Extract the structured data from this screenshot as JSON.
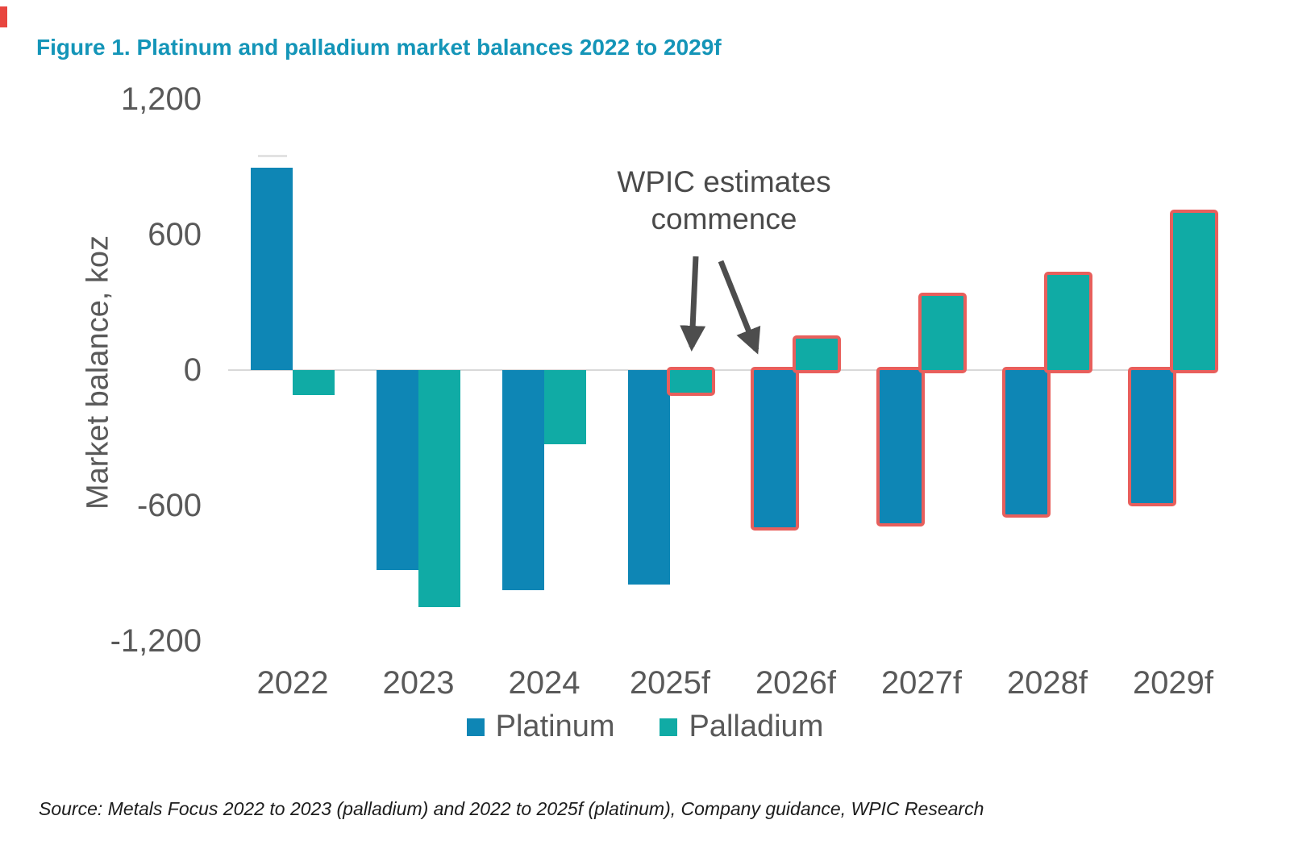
{
  "figure": {
    "title": "Figure 1. Platinum and palladium market balances 2022 to 2029f",
    "source": "Source: Metals Focus 2022 to 2023 (palladium) and 2022 to 2025f (platinum), Company guidance, WPIC Research"
  },
  "annotation": {
    "line1": "WPIC estimates",
    "line2": "commence"
  },
  "colors": {
    "title_accent": "#1495b8",
    "platinum": "#0e86b5",
    "palladium": "#10aba5",
    "wpic_outline": "#e85f5c",
    "axis_text": "#595959",
    "axis_line": "#d8d8d8",
    "annotation_text": "#4a4a4a"
  },
  "chart_data": {
    "type": "bar",
    "title": "Figure 1. Platinum and palladium market balances 2022 to 2029f",
    "xlabel": "",
    "ylabel": "Market balance, koz",
    "units": "koz",
    "categories": [
      "2022",
      "2023",
      "2024",
      "2025f",
      "2026f",
      "2027f",
      "2028f",
      "2029f"
    ],
    "series": [
      {
        "name": "Platinum",
        "color": "#0e86b5",
        "values": [
          895,
          -885,
          -975,
          -950,
          -695,
          -680,
          -640,
          -590
        ],
        "wpic_outlined": [
          false,
          false,
          false,
          false,
          true,
          true,
          true,
          true
        ]
      },
      {
        "name": "Palladium",
        "color": "#10aba5",
        "values": [
          -110,
          -1050,
          -330,
          -100,
          140,
          330,
          420,
          695
        ],
        "wpic_outlined": [
          false,
          false,
          false,
          true,
          true,
          true,
          true,
          true
        ]
      }
    ],
    "ylim": [
      -1200,
      1200
    ],
    "y_ticks": [
      {
        "value": 1200,
        "label": "1,200"
      },
      {
        "value": 600,
        "label": "600"
      },
      {
        "value": 0,
        "label": "0"
      },
      {
        "value": -600,
        "label": "-600"
      },
      {
        "value": -1200,
        "label": "-1,200"
      }
    ],
    "grid": false,
    "legend": [
      "Platinum",
      "Palladium"
    ],
    "legend_position": "bottom",
    "annotation_text": "WPIC estimates commence",
    "wpic_outline_color": "#e85f5c"
  }
}
